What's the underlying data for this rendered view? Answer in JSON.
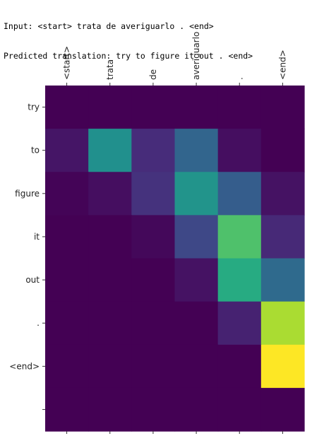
{
  "header": {
    "input_line": "Input: <start> trata de averiguarlo . <end>",
    "prediction_line": "Predicted translation: try to figure it out . <end>"
  },
  "chart_data": {
    "type": "heatmap",
    "colormap": "viridis",
    "value_range": [
      0,
      1
    ],
    "x_tick_labels": [
      "<start>",
      "trata",
      "de",
      "averiguarlo",
      ".",
      "<end>"
    ],
    "y_tick_labels": [
      "try",
      "to",
      "figure",
      "it",
      "out",
      ".",
      "<end>",
      ""
    ],
    "values": [
      [
        0.0,
        0.0,
        0.0,
        0.0,
        0.0,
        0.0
      ],
      [
        0.06,
        0.5,
        0.13,
        0.33,
        0.04,
        0.0
      ],
      [
        0.01,
        0.04,
        0.15,
        0.52,
        0.3,
        0.05
      ],
      [
        0.0,
        0.0,
        0.02,
        0.22,
        0.72,
        0.12
      ],
      [
        0.0,
        0.0,
        0.0,
        0.05,
        0.62,
        0.35
      ],
      [
        0.0,
        0.0,
        0.0,
        0.0,
        0.1,
        0.88
      ],
      [
        0.0,
        0.0,
        0.0,
        0.0,
        0.0,
        1.0
      ],
      [
        0.0,
        0.0,
        0.0,
        0.0,
        0.0,
        0.0
      ]
    ]
  }
}
